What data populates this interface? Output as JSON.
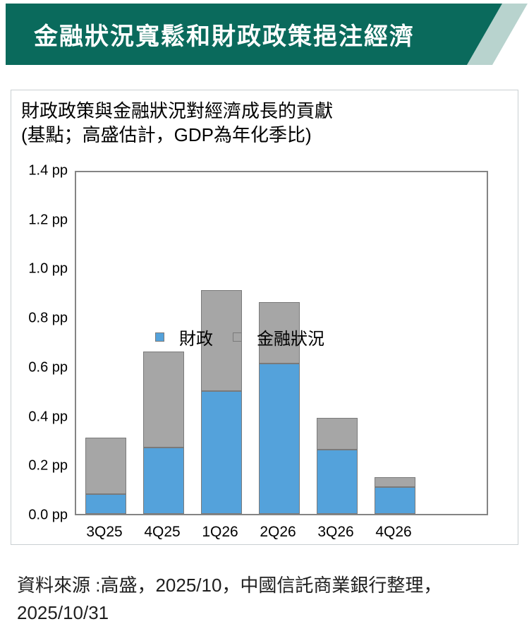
{
  "banner": {
    "title": "金融狀況寬鬆和財政政策挹注經濟",
    "bg_color": "#0A6A5C",
    "accent_color": "#B8D3CE"
  },
  "card": {
    "title_line1": "財政政策與金融狀況對經濟成長的貢獻",
    "title_line2": "(基點；高盛估計，GDP為年化季比)"
  },
  "chart_data": {
    "type": "bar",
    "stacked": true,
    "title": "財政政策與金融狀況對經濟成長的貢獻",
    "subtitle": "(基點；高盛估計，GDP為年化季比)",
    "categories": [
      "3Q25",
      "4Q25",
      "1Q26",
      "2Q26",
      "3Q26",
      "4Q26"
    ],
    "series": [
      {
        "name": "財政",
        "color": "#54A2DB",
        "values": [
          0.08,
          0.27,
          0.5,
          0.61,
          0.26,
          0.11
        ]
      },
      {
        "name": "金融狀況",
        "color": "#A6A6A6",
        "values": [
          0.23,
          0.39,
          0.41,
          0.25,
          0.13,
          0.04
        ]
      }
    ],
    "totals": [
      0.31,
      0.66,
      0.91,
      0.86,
      0.39,
      0.15
    ],
    "ylim": [
      0,
      1.4
    ],
    "ytick_step": 0.2,
    "yticks": [
      "0.0 pp",
      "0.2 pp",
      "0.4 pp",
      "0.6 pp",
      "0.8 pp",
      "1.0 pp",
      "1.2 pp",
      "1.4 pp"
    ],
    "legend_position": "inside-top-left",
    "grid": false
  },
  "footer": {
    "line1": "資料來源 :高盛，2025/10，中國信託商業銀行整理，",
    "line2": "2025/10/31"
  }
}
